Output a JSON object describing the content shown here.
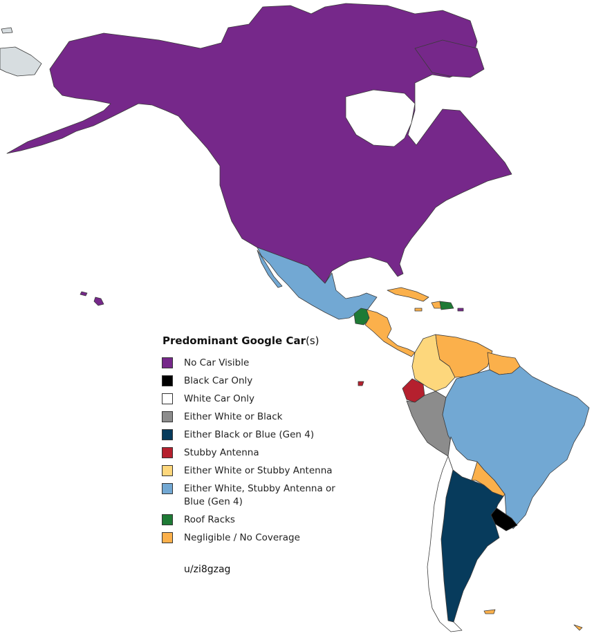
{
  "legend": {
    "title_main": "Predominant Google Car",
    "title_suffix": "(s)",
    "items": [
      {
        "label": "No Car Visible",
        "color": "#76288a"
      },
      {
        "label": "Black Car Only",
        "color": "#000000"
      },
      {
        "label": "White Car Only",
        "color": "#ffffff"
      },
      {
        "label": "Either White or Black",
        "color": "#8c8c8c"
      },
      {
        "label": "Either Black or Blue (Gen 4)",
        "color": "#073b5c"
      },
      {
        "label": "Stubby Antenna",
        "color": "#b5202e"
      },
      {
        "label": "Either White or Stubby Antenna",
        "color": "#fdd77c"
      },
      {
        "label": "Either White, Stubby Antenna or Blue (Gen 4)",
        "color": "#72a8d3"
      },
      {
        "label": "Roof Racks",
        "color": "#1e7a35"
      },
      {
        "label": "Negligible / No Coverage",
        "color": "#fbb04b"
      }
    ]
  },
  "credit": "u/zi8gzag",
  "map": {
    "regions": [
      {
        "name": "canada-alaska-usa",
        "category": "No Car Visible",
        "color": "#76288a"
      },
      {
        "name": "russia-east",
        "category": "Not mapped",
        "color": "#d7dde0"
      },
      {
        "name": "mexico",
        "category": "Either White, Stubby Antenna or Blue (Gen 4)",
        "color": "#72a8d3"
      },
      {
        "name": "guatemala",
        "category": "Roof Racks",
        "color": "#1e7a35"
      },
      {
        "name": "central-america",
        "category": "Negligible / No Coverage",
        "color": "#fbb04b"
      },
      {
        "name": "cuba",
        "category": "Negligible / No Coverage",
        "color": "#fbb04b"
      },
      {
        "name": "dominican-republic",
        "category": "Roof Racks",
        "color": "#1e7a35"
      },
      {
        "name": "colombia",
        "category": "Either White or Stubby Antenna",
        "color": "#fdd77c"
      },
      {
        "name": "venezuela",
        "category": "Negligible / No Coverage",
        "color": "#fbb04b"
      },
      {
        "name": "guianas",
        "category": "Negligible / No Coverage",
        "color": "#fbb04b"
      },
      {
        "name": "ecuador",
        "category": "Stubby Antenna",
        "color": "#b5202e"
      },
      {
        "name": "peru",
        "category": "Either White or Black",
        "color": "#8c8c8c"
      },
      {
        "name": "brazil",
        "category": "Either White, Stubby Antenna or Blue (Gen 4)",
        "color": "#72a8d3"
      },
      {
        "name": "bolivia",
        "category": "White Car Only",
        "color": "#ffffff"
      },
      {
        "name": "paraguay",
        "category": "Negligible / No Coverage",
        "color": "#fbb04b"
      },
      {
        "name": "uruguay",
        "category": "Black Car Only",
        "color": "#000000"
      },
      {
        "name": "argentina",
        "category": "Either Black or Blue (Gen 4)",
        "color": "#073b5c"
      },
      {
        "name": "chile",
        "category": "White Car Only",
        "color": "#ffffff"
      },
      {
        "name": "falklands",
        "category": "Negligible / No Coverage",
        "color": "#fbb04b"
      }
    ]
  }
}
